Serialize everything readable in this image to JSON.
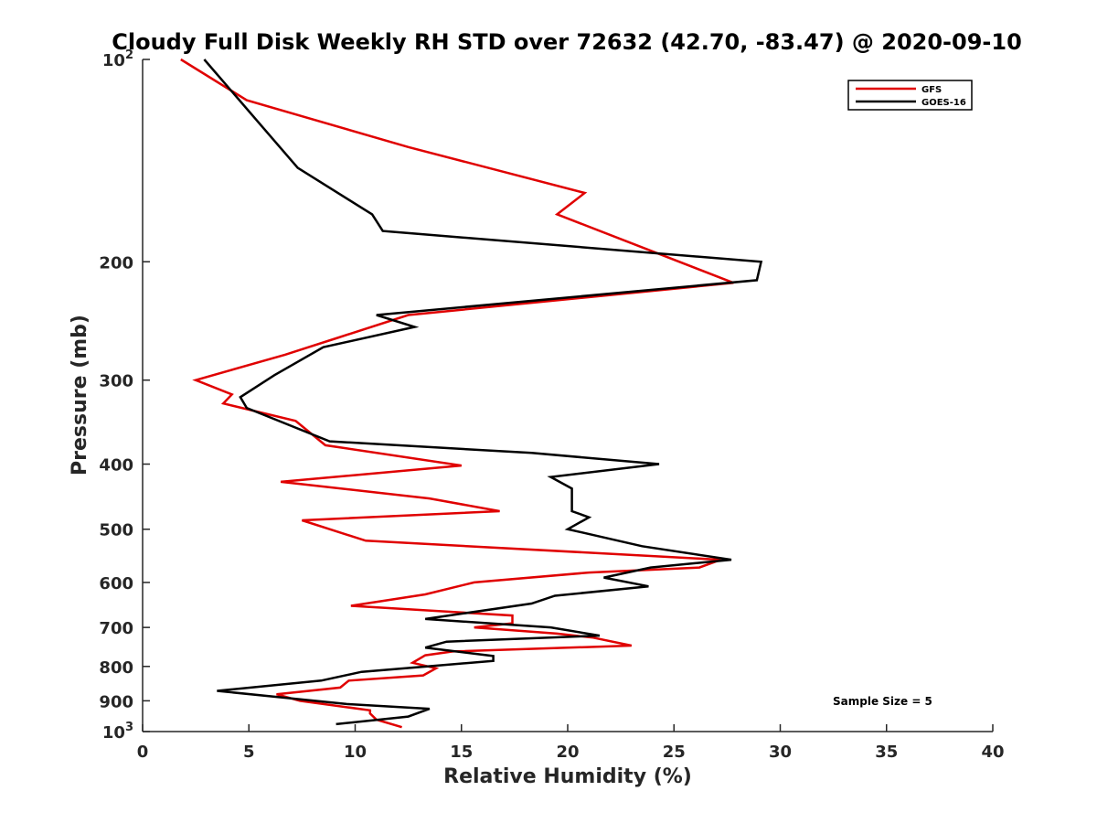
{
  "chart_data": {
    "type": "line",
    "title": "Cloudy Full Disk Weekly RH STD over 72632 (42.70, -83.47) @ 2020-09-10",
    "xlabel": "Relative Humidity (%)",
    "ylabel": "Pressure (mb)",
    "xlim": [
      0,
      40
    ],
    "ylim": [
      100,
      1000
    ],
    "y_scale": "log",
    "y_reversed": true,
    "grid": false,
    "legend_position": "top-right",
    "annotation": "Sample Size = 5",
    "x_ticks": [
      {
        "value": 0,
        "label": "0"
      },
      {
        "value": 5,
        "label": "5"
      },
      {
        "value": 10,
        "label": "10"
      },
      {
        "value": 15,
        "label": "15"
      },
      {
        "value": 20,
        "label": "20"
      },
      {
        "value": 25,
        "label": "25"
      },
      {
        "value": 30,
        "label": "30"
      },
      {
        "value": 35,
        "label": "35"
      },
      {
        "value": 40,
        "label": "40"
      }
    ],
    "y_ticks": [
      {
        "value": 100,
        "label": "10",
        "sup": "2"
      },
      {
        "value": 200,
        "label": "200",
        "sup": ""
      },
      {
        "value": 300,
        "label": "300",
        "sup": ""
      },
      {
        "value": 400,
        "label": "400",
        "sup": ""
      },
      {
        "value": 500,
        "label": "500",
        "sup": ""
      },
      {
        "value": 600,
        "label": "600",
        "sup": ""
      },
      {
        "value": 700,
        "label": "700",
        "sup": ""
      },
      {
        "value": 800,
        "label": "800",
        "sup": ""
      },
      {
        "value": 900,
        "label": "900",
        "sup": ""
      },
      {
        "value": 1000,
        "label": "10",
        "sup": "3"
      }
    ],
    "series": [
      {
        "name": "GFS",
        "color": "#e00000",
        "points": [
          [
            1.8,
            100
          ],
          [
            4.9,
            115
          ],
          [
            12.5,
            135
          ],
          [
            20.8,
            158
          ],
          [
            19.5,
            170
          ],
          [
            27.8,
            215
          ],
          [
            12.5,
            240
          ],
          [
            9.1,
            260
          ],
          [
            6.7,
            275
          ],
          [
            2.5,
            300
          ],
          [
            4.2,
            315
          ],
          [
            3.8,
            325
          ],
          [
            7.2,
            345
          ],
          [
            8.6,
            375
          ],
          [
            15.0,
            402
          ],
          [
            6.5,
            425
          ],
          [
            13.5,
            450
          ],
          [
            16.8,
            470
          ],
          [
            7.5,
            485
          ],
          [
            8.8,
            500
          ],
          [
            10.5,
            520
          ],
          [
            27.2,
            555
          ],
          [
            26.2,
            570
          ],
          [
            21.0,
            580
          ],
          [
            15.6,
            600
          ],
          [
            13.3,
            625
          ],
          [
            9.8,
            650
          ],
          [
            17.4,
            672
          ],
          [
            17.4,
            690
          ],
          [
            15.6,
            700
          ],
          [
            19.5,
            715
          ],
          [
            21.2,
            725
          ],
          [
            23.0,
            745
          ],
          [
            14.6,
            760
          ],
          [
            13.3,
            770
          ],
          [
            12.7,
            790
          ],
          [
            13.8,
            805
          ],
          [
            13.2,
            825
          ],
          [
            9.7,
            840
          ],
          [
            9.3,
            860
          ],
          [
            6.3,
            880
          ],
          [
            7.4,
            900
          ],
          [
            10.7,
            930
          ],
          [
            10.7,
            940
          ],
          [
            11.0,
            960
          ],
          [
            12.2,
            985
          ]
        ]
      },
      {
        "name": "GOES-16",
        "color": "#000000",
        "points": [
          [
            2.9,
            100
          ],
          [
            7.3,
            145
          ],
          [
            10.8,
            170
          ],
          [
            11.3,
            180
          ],
          [
            29.1,
            200
          ],
          [
            28.9,
            213
          ],
          [
            11.0,
            240
          ],
          [
            12.8,
            250
          ],
          [
            8.5,
            268
          ],
          [
            6.2,
            295
          ],
          [
            4.6,
            318
          ],
          [
            4.9,
            330
          ],
          [
            8.8,
            370
          ],
          [
            18.3,
            385
          ],
          [
            24.3,
            400
          ],
          [
            19.2,
            418
          ],
          [
            20.2,
            435
          ],
          [
            20.2,
            470
          ],
          [
            21.0,
            480
          ],
          [
            20.0,
            500
          ],
          [
            23.5,
            530
          ],
          [
            27.7,
            555
          ],
          [
            23.9,
            570
          ],
          [
            21.7,
            590
          ],
          [
            23.8,
            608
          ],
          [
            19.4,
            628
          ],
          [
            18.3,
            645
          ],
          [
            13.3,
            680
          ],
          [
            19.2,
            700
          ],
          [
            21.5,
            720
          ],
          [
            14.3,
            735
          ],
          [
            13.3,
            750
          ],
          [
            16.5,
            772
          ],
          [
            16.5,
            785
          ],
          [
            13.4,
            800
          ],
          [
            10.3,
            815
          ],
          [
            8.4,
            840
          ],
          [
            3.5,
            870
          ],
          [
            9.6,
            910
          ],
          [
            13.5,
            925
          ],
          [
            12.5,
            950
          ],
          [
            9.1,
            975
          ]
        ]
      }
    ]
  }
}
